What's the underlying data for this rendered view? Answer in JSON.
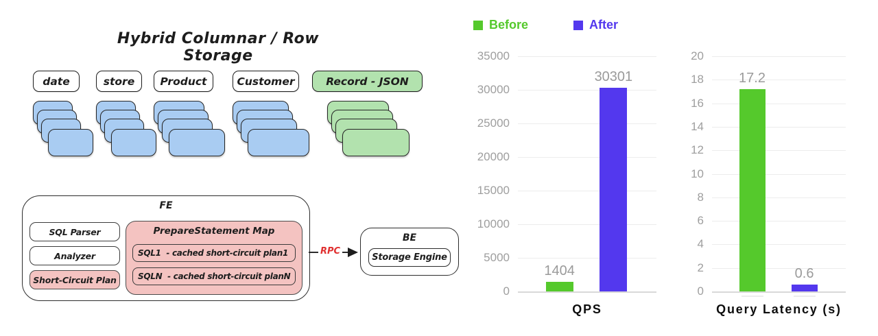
{
  "colors": {
    "green": "#55c92c",
    "blue": "#5338ee",
    "card_blue": "#a9ccf2",
    "card_green": "#b2e2ae",
    "pink": "#f4c3c1",
    "rpc_red": "#e03131",
    "axis_gray": "#9e9e9e",
    "grid_gray": "#ececec"
  },
  "diagram": {
    "title": "Hybrid Columnar / Row Storage",
    "columns": [
      {
        "label": "date",
        "type": "blue",
        "cards": 4
      },
      {
        "label": "store",
        "type": "blue",
        "cards": 4
      },
      {
        "label": "Product",
        "type": "blue",
        "cards": 4
      },
      {
        "label": "Customer",
        "type": "blue",
        "cards": 4
      },
      {
        "label": "Record - JSON",
        "type": "green",
        "cards": 4
      }
    ]
  },
  "architecture": {
    "fe": {
      "title": "FE",
      "modules": [
        {
          "label": "SQL Parser",
          "style": "white"
        },
        {
          "label": "Analyzer",
          "style": "white"
        },
        {
          "label": "Short-Circuit Plan",
          "style": "pink"
        }
      ],
      "map": {
        "title": "PrepareStatement Map",
        "entries": [
          "SQL1  - cached short-circuit plan1",
          "SQLN  - cached short-circuit planN"
        ]
      }
    },
    "rpc_label": "RPC",
    "be": {
      "title": "BE",
      "module": "Storage Engine"
    }
  },
  "legend": {
    "items": [
      {
        "label": "Before",
        "color": "#55c92c"
      },
      {
        "label": "After",
        "color": "#5338ee"
      }
    ]
  },
  "chart_data": [
    {
      "type": "bar",
      "title": "QPS",
      "categories": [
        "Before",
        "After"
      ],
      "values": [
        1404,
        30301
      ],
      "value_labels": [
        "1404",
        "30301"
      ],
      "colors": [
        "#55c92c",
        "#5338ee"
      ],
      "ylim": [
        0,
        35000
      ],
      "yticks": [
        0,
        5000,
        10000,
        15000,
        20000,
        25000,
        30000,
        35000
      ],
      "grid": true,
      "legend_position": "top"
    },
    {
      "type": "bar",
      "title": "Query Latency (s)",
      "categories": [
        "Before",
        "After"
      ],
      "values": [
        17.2,
        0.6
      ],
      "value_labels": [
        "17.2",
        "0.6"
      ],
      "colors": [
        "#55c92c",
        "#5338ee"
      ],
      "ylim": [
        0,
        20
      ],
      "yticks": [
        0,
        2,
        4,
        6,
        8,
        10,
        12,
        14,
        16,
        18,
        20
      ],
      "grid": true,
      "legend_position": "top"
    }
  ]
}
